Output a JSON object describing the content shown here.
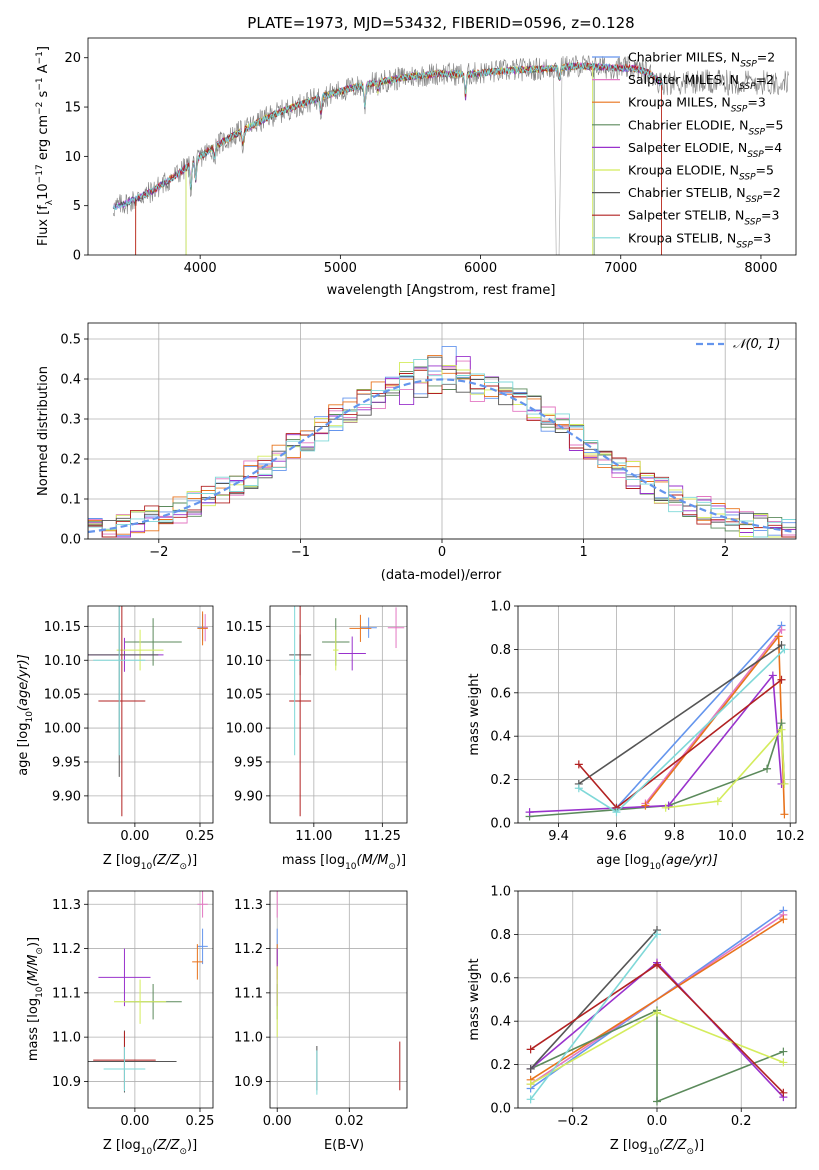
{
  "chart_data": [
    {
      "type": "line",
      "title": "PLATE=1973, MJD=53432, FIBERID=0596, z=0.128",
      "xlabel": "wavelength [Angstrom, rest frame]",
      "ylabel": "Flux [f",
      "ylabel_sub": "λ",
      "ylabel_mid": "10",
      "ylabel_sup1": "−17",
      "ylabel_mid2": " erg cm",
      "ylabel_sup2": "−2",
      "ylabel_mid3": " s",
      "ylabel_sup3": "−1",
      "ylabel_mid4": " A",
      "ylabel_sup4": "−1",
      "ylabel_end": "]",
      "xlim": [
        3200,
        8250
      ],
      "ylim": [
        0,
        22
      ],
      "xticks": [
        "4000",
        "5000",
        "6000",
        "7000",
        "8000"
      ],
      "yticks": [
        "0",
        "5",
        "10",
        "15",
        "20"
      ],
      "legend_position": "top-right",
      "continuum": [
        [
          3380,
          4.8
        ],
        [
          3500,
          5.4
        ],
        [
          3650,
          6.4
        ],
        [
          3800,
          7.8
        ],
        [
          3950,
          9.4
        ],
        [
          4100,
          11.0
        ],
        [
          4300,
          12.6
        ],
        [
          4500,
          14.1
        ],
        [
          4700,
          15.2
        ],
        [
          4900,
          16.2
        ],
        [
          5100,
          17.0
        ],
        [
          5300,
          17.6
        ],
        [
          5500,
          18.1
        ],
        [
          5700,
          18.4
        ],
        [
          5900,
          18.3
        ],
        [
          6100,
          18.6
        ],
        [
          6300,
          18.8
        ],
        [
          6500,
          18.9
        ],
        [
          6700,
          19.2
        ],
        [
          6900,
          19.0
        ],
        [
          7100,
          18.9
        ],
        [
          7200,
          18.5
        ],
        [
          7280,
          17.5
        ]
      ],
      "series": [
        {
          "name": "Chabrier MILES",
          "nssp": "2",
          "color": "#6495ed",
          "cut": [
            null,
            null
          ]
        },
        {
          "name": "Salpeter MILES",
          "nssp": "2",
          "color": "#e377c2",
          "cut": [
            null,
            null
          ]
        },
        {
          "name": "Kroupa MILES",
          "nssp": "3",
          "color": "#e8731c",
          "cut": [
            3540,
            7290
          ]
        },
        {
          "name": "Chabrier ELODIE",
          "nssp": "5",
          "color": "#5b8a5b",
          "cut": [
            3900,
            6810
          ]
        },
        {
          "name": "Salpeter ELODIE",
          "nssp": "4",
          "color": "#9932cc",
          "cut": [
            null,
            null
          ]
        },
        {
          "name": "Kroupa ELODIE",
          "nssp": "5",
          "color": "#d4ec5c",
          "cut": [
            3900,
            6800
          ]
        },
        {
          "name": "Chabrier STELIB",
          "nssp": "2",
          "color": "#555555",
          "cut": [
            null,
            null
          ]
        },
        {
          "name": "Salpeter STELIB",
          "nssp": "3",
          "color": "#b22222",
          "cut": [
            3540,
            7290
          ]
        },
        {
          "name": "Kroupa STELIB",
          "nssp": "3",
          "color": "#7fd8d8",
          "cut": [
            null,
            null
          ]
        }
      ]
    },
    {
      "type": "histogram",
      "xlabel": "(data-model)/error",
      "ylabel": "Normed distribution",
      "xlim": [
        -2.5,
        2.5
      ],
      "ylim": [
        0,
        0.54
      ],
      "xticks": [
        "−2",
        "−1",
        "0",
        "1",
        "2"
      ],
      "yticks": [
        "0.0",
        "0.1",
        "0.2",
        "0.3",
        "0.4",
        "0.5"
      ],
      "legend": "𝒩(0, 1)",
      "legend_position": "top-right",
      "bin_width": 0.1
    },
    {
      "type": "scatter",
      "xlabel": "Z [log",
      "xlabel_sub": "10",
      "xlabel_rest": "(Z/Z",
      "xlabel_sub2": "⊙",
      "xlabel_end": ")]",
      "ylabel": "age  [log",
      "ylabel_sub": "10",
      "ylabel_rest": "(age/yr)]",
      "xlim": [
        -0.18,
        0.3
      ],
      "ylim": [
        9.86,
        10.18
      ],
      "xticks": [
        "0.00",
        "0.25"
      ],
      "yticks": [
        "9.90",
        "9.95",
        "10.00",
        "10.05",
        "10.10",
        "10.15"
      ],
      "points": [
        {
          "x": 0.26,
          "y": 10.148,
          "xerr": 0.02,
          "yerr": 0.02,
          "color": "#6495ed"
        },
        {
          "x": 0.27,
          "y": 10.148,
          "xerr": 0.01,
          "yerr": 0.02,
          "color": "#e377c2"
        },
        {
          "x": 0.26,
          "y": 10.147,
          "xerr": 0.02,
          "yerr": 0.025,
          "color": "#e8731c"
        },
        {
          "x": 0.07,
          "y": 10.127,
          "xerr": 0.11,
          "yerr": 0.035,
          "color": "#5b8a5b"
        },
        {
          "x": -0.04,
          "y": 10.108,
          "xerr": 0.15,
          "yerr": 0.025,
          "color": "#9932cc"
        },
        {
          "x": 0.02,
          "y": 10.115,
          "xerr": 0.09,
          "yerr": 0.03,
          "color": "#d4ec5c"
        },
        {
          "x": -0.06,
          "y": 10.108,
          "xerr": 0.15,
          "yerr": 0.18,
          "color": "#555555"
        },
        {
          "x": -0.05,
          "y": 10.04,
          "xerr": 0.09,
          "yerr": 0.17,
          "color": "#b22222"
        },
        {
          "x": -0.06,
          "y": 10.1,
          "xerr": 0.1,
          "yerr": 0.14,
          "color": "#7fd8d8"
        }
      ]
    },
    {
      "type": "scatter",
      "xlabel": "mass [log",
      "xlabel_sub": "10",
      "xlabel_rest": "(M/M",
      "xlabel_sub2": "⊙",
      "xlabel_end": ")]",
      "xlim": [
        10.84,
        11.34
      ],
      "ylim": [
        9.86,
        10.18
      ],
      "xticks": [
        "11.00",
        "11.25"
      ],
      "yticks": [
        "9.90",
        "9.95",
        "10.00",
        "10.05",
        "10.10",
        "10.15"
      ],
      "points": [
        {
          "x": 11.2,
          "y": 10.148,
          "xerr": 0.03,
          "yerr": 0.015,
          "color": "#6495ed"
        },
        {
          "x": 11.3,
          "y": 10.148,
          "xerr": 0.03,
          "yerr": 0.03,
          "color": "#e377c2"
        },
        {
          "x": 11.17,
          "y": 10.147,
          "xerr": 0.04,
          "yerr": 0.02,
          "color": "#e8731c"
        },
        {
          "x": 11.08,
          "y": 10.127,
          "xerr": 0.05,
          "yerr": 0.035,
          "color": "#5b8a5b"
        },
        {
          "x": 11.14,
          "y": 10.11,
          "xerr": 0.05,
          "yerr": 0.025,
          "color": "#9932cc"
        },
        {
          "x": 11.08,
          "y": 10.115,
          "xerr": 0.01,
          "yerr": 0.03,
          "color": "#d4ec5c"
        },
        {
          "x": 10.95,
          "y": 10.108,
          "xerr": 0.04,
          "yerr": 0.03,
          "color": "#555555"
        },
        {
          "x": 10.95,
          "y": 10.04,
          "xerr": 0.04,
          "yerr": 0.17,
          "color": "#b22222"
        },
        {
          "x": 10.93,
          "y": 10.1,
          "xerr": 0.02,
          "yerr": 0.14,
          "color": "#7fd8d8"
        }
      ]
    },
    {
      "type": "line",
      "xlabel": "age  [log",
      "xlabel_sub": "10",
      "xlabel_rest": "(age/yr)]",
      "ylabel": "mass weight",
      "xlim": [
        9.26,
        10.22
      ],
      "ylim": [
        0,
        1
      ],
      "xticks": [
        "9.4",
        "9.6",
        "9.8",
        "10.0",
        "10.2"
      ],
      "yticks": [
        "0.0",
        "0.2",
        "0.4",
        "0.6",
        "0.8",
        "1.0"
      ],
      "series": [
        {
          "color": "#6495ed",
          "x": [
            9.6,
            10.17
          ],
          "y": [
            0.07,
            0.91
          ]
        },
        {
          "color": "#e377c2",
          "x": [
            9.7,
            10.17
          ],
          "y": [
            0.09,
            0.89
          ]
        },
        {
          "color": "#e8731c",
          "x": [
            9.7,
            10.16,
            10.18
          ],
          "y": [
            0.08,
            0.86,
            0.04
          ]
        },
        {
          "color": "#5b8a5b",
          "x": [
            9.3,
            9.78,
            10.12,
            10.17,
            10.18
          ],
          "y": [
            0.03,
            0.08,
            0.25,
            0.46,
            0.18
          ]
        },
        {
          "color": "#9932cc",
          "x": [
            9.3,
            9.78,
            10.14,
            10.17
          ],
          "y": [
            0.05,
            0.08,
            0.68,
            0.18
          ]
        },
        {
          "color": "#d4ec5c",
          "x": [
            9.77,
            9.95,
            10.17,
            10.18
          ],
          "y": [
            0.07,
            0.1,
            0.43,
            0.18
          ]
        },
        {
          "color": "#555555",
          "x": [
            9.47,
            10.17
          ],
          "y": [
            0.18,
            0.82
          ]
        },
        {
          "color": "#b22222",
          "x": [
            9.47,
            9.6,
            10.17
          ],
          "y": [
            0.27,
            0.07,
            0.66
          ]
        },
        {
          "color": "#7fd8d8",
          "x": [
            9.47,
            9.6,
            10.18
          ],
          "y": [
            0.16,
            0.05,
            0.8
          ]
        }
      ]
    },
    {
      "type": "scatter",
      "xlabel": "Z [log",
      "xlabel_sub": "10",
      "xlabel_rest": "(Z/Z",
      "xlabel_sub2": "⊙",
      "xlabel_end": ")]",
      "ylabel": "mass [log",
      "ylabel_sub": "10",
      "ylabel_rest": "(M/M",
      "ylabel_sub2": "⊙",
      "ylabel_end": ")]",
      "xlim": [
        -0.18,
        0.3
      ],
      "ylim": [
        10.84,
        11.33
      ],
      "xticks": [
        "0.00",
        "0.25"
      ],
      "yticks": [
        "10.9",
        "11.0",
        "11.1",
        "11.2",
        "11.3"
      ],
      "points": [
        {
          "x": 0.26,
          "y": 11.205,
          "xerr": 0.02,
          "yerr": 0.04,
          "color": "#6495ed"
        },
        {
          "x": 0.26,
          "y": 11.3,
          "xerr": 0.02,
          "yerr": 0.03,
          "color": "#e377c2"
        },
        {
          "x": 0.24,
          "y": 11.17,
          "xerr": 0.02,
          "yerr": 0.04,
          "color": "#e8731c"
        },
        {
          "x": 0.07,
          "y": 11.08,
          "xerr": 0.11,
          "yerr": 0.04,
          "color": "#5b8a5b"
        },
        {
          "x": -0.04,
          "y": 11.135,
          "xerr": 0.1,
          "yerr": 0.065,
          "color": "#9932cc"
        },
        {
          "x": 0.02,
          "y": 11.08,
          "xerr": 0.1,
          "yerr": 0.05,
          "color": "#d4ec5c"
        },
        {
          "x": -0.04,
          "y": 10.945,
          "xerr": 0.2,
          "yerr": 0.07,
          "color": "#555555"
        },
        {
          "x": -0.04,
          "y": 10.948,
          "xerr": 0.12,
          "yerr": 0.065,
          "color": "#b22222"
        },
        {
          "x": -0.04,
          "y": 10.928,
          "xerr": 0.08,
          "yerr": 0.05,
          "color": "#7fd8d8"
        }
      ]
    },
    {
      "type": "scatter",
      "xlabel": "E(B-V)",
      "xlim": [
        -0.002,
        0.036
      ],
      "ylim": [
        10.84,
        11.33
      ],
      "xticks": [
        "0.00",
        "0.02"
      ],
      "yticks": [
        "10.9",
        "11.0",
        "11.1",
        "11.2",
        "11.3"
      ],
      "points": [
        {
          "x": 0.0,
          "y": 11.205,
          "yerr": 0.04,
          "color": "#6495ed"
        },
        {
          "x": 0.0,
          "y": 11.3,
          "yerr": 0.03,
          "color": "#e377c2"
        },
        {
          "x": 0.0,
          "y": 11.17,
          "yerr": 0.04,
          "color": "#e8731c"
        },
        {
          "x": 0.0,
          "y": 11.08,
          "yerr": 0.04,
          "color": "#5b8a5b"
        },
        {
          "x": 0.0,
          "y": 11.135,
          "yerr": 0.065,
          "color": "#9932cc"
        },
        {
          "x": 0.0,
          "y": 11.08,
          "yerr": 0.08,
          "color": "#d4ec5c"
        },
        {
          "x": 0.011,
          "y": 10.93,
          "yerr": 0.05,
          "color": "#555555"
        },
        {
          "x": 0.034,
          "y": 10.935,
          "yerr": 0.055,
          "color": "#b22222"
        },
        {
          "x": 0.011,
          "y": 10.92,
          "yerr": 0.05,
          "color": "#7fd8d8"
        }
      ]
    },
    {
      "type": "line",
      "xlabel": "Z [log",
      "xlabel_sub": "10",
      "xlabel_rest": "(Z/Z",
      "xlabel_sub2": "⊙",
      "xlabel_end": ")]",
      "ylabel": "mass weight",
      "xlim": [
        -0.33,
        0.33
      ],
      "ylim": [
        0,
        1
      ],
      "xticks": [
        "−0.2",
        "0.0",
        "0.2"
      ],
      "yticks": [
        "0.0",
        "0.2",
        "0.4",
        "0.6",
        "0.8",
        "1.0"
      ],
      "series": [
        {
          "color": "#6495ed",
          "x": [
            -0.3,
            0.3
          ],
          "y": [
            0.09,
            0.91
          ]
        },
        {
          "color": "#e377c2",
          "x": [
            -0.3,
            0.3
          ],
          "y": [
            0.11,
            0.89
          ]
        },
        {
          "color": "#e8731c",
          "x": [
            -0.3,
            0.3
          ],
          "y": [
            0.13,
            0.87
          ]
        },
        {
          "color": "#5b8a5b",
          "x": [
            -0.3,
            0.0,
            0.0,
            0.3
          ],
          "y": [
            0.18,
            0.45,
            0.03,
            0.26
          ]
        },
        {
          "color": "#9932cc",
          "x": [
            -0.3,
            0.0,
            0.3
          ],
          "y": [
            0.18,
            0.67,
            0.05
          ]
        },
        {
          "color": "#d4ec5c",
          "x": [
            -0.3,
            0.0,
            0.3
          ],
          "y": [
            0.11,
            0.44,
            0.21
          ]
        },
        {
          "color": "#555555",
          "x": [
            -0.3,
            0.0
          ],
          "y": [
            0.18,
            0.82
          ]
        },
        {
          "color": "#b22222",
          "x": [
            -0.3,
            0.0,
            0.3
          ],
          "y": [
            0.27,
            0.66,
            0.07
          ]
        },
        {
          "color": "#7fd8d8",
          "x": [
            -0.3,
            0.0
          ],
          "y": [
            0.04,
            0.8
          ]
        }
      ]
    }
  ]
}
